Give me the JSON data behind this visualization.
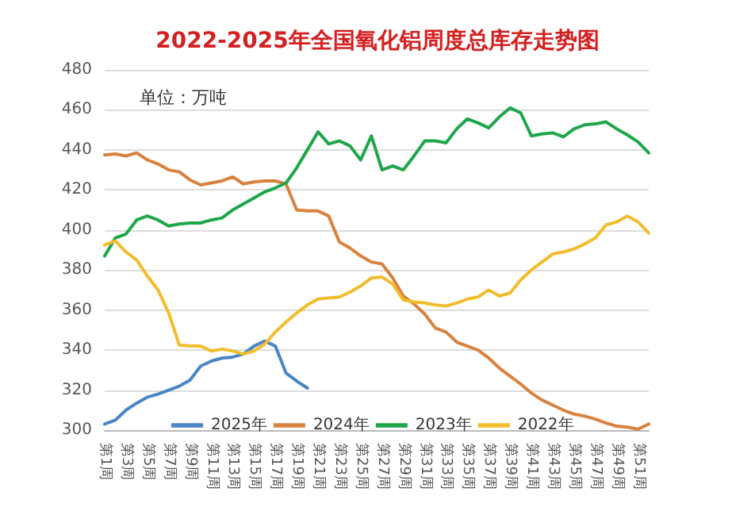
{
  "chart_data": {
    "type": "line",
    "title": "2022-2025年全国氧化铝周度总库存走势图",
    "annotations": [
      "单位：万吨"
    ],
    "categories": [
      "第1周",
      null,
      "第3周",
      null,
      "第5周",
      null,
      "第7周",
      null,
      "第9周",
      null,
      "第11周",
      null,
      "第13周",
      null,
      "第15周",
      null,
      "第17周",
      null,
      "第19周",
      null,
      "第21周",
      null,
      "第23周",
      null,
      "第25周",
      null,
      "第27周",
      null,
      "第29周",
      null,
      "第31周",
      null,
      "第33周",
      null,
      "第35周",
      null,
      "第37周",
      null,
      "第39周",
      null,
      "第41周",
      null,
      "第43周",
      null,
      "第45周",
      null,
      "第47周",
      null,
      "第49周",
      null,
      "第51周",
      null
    ],
    "series": [
      {
        "name": "2025年",
        "color": "#4a86c5",
        "values": [
          303,
          305,
          310,
          313.5,
          316.5,
          318,
          320,
          322,
          325,
          332,
          334.5,
          336,
          336.5,
          338,
          342,
          344.5,
          342,
          328.5,
          324.5,
          321,
          null,
          null,
          null,
          null,
          null,
          null,
          null,
          null,
          null,
          null,
          null,
          null,
          null,
          null,
          null,
          null,
          null,
          null,
          null,
          null,
          null,
          null,
          null,
          null,
          null,
          null,
          null,
          null,
          null,
          null,
          null,
          null
        ]
      },
      {
        "name": "2024年",
        "color": "#d9823f",
        "values": [
          437.5,
          438,
          437,
          438.5,
          435,
          433,
          430,
          429,
          425,
          422.5,
          423.5,
          424.5,
          426.5,
          423,
          424,
          424.5,
          424.5,
          423,
          410,
          409.5,
          409.5,
          407,
          394,
          391,
          387,
          384,
          383,
          376,
          367,
          363,
          358,
          351,
          349,
          344,
          342,
          340,
          336,
          331,
          327,
          323,
          318.5,
          315,
          312.5,
          310,
          308,
          307,
          305.5,
          303.5,
          302,
          301.5,
          300.5,
          303
        ]
      },
      {
        "name": "2023年",
        "color": "#1fa64a",
        "values": [
          387,
          396,
          398,
          405,
          407,
          405,
          402,
          403,
          403.5,
          403.5,
          405,
          406,
          410,
          413,
          416,
          419,
          421,
          423.5,
          431,
          440,
          449,
          443,
          444.5,
          442,
          435,
          447,
          430,
          432,
          430,
          437,
          444.5,
          444.5,
          443.5,
          450.5,
          455.5,
          453.5,
          451,
          456.5,
          461,
          458.5,
          447,
          448,
          448.5,
          446.5,
          450.5,
          452.5,
          453,
          454,
          450.5,
          447.5,
          444,
          438.5
        ]
      },
      {
        "name": "2022年",
        "color": "#f2bd2c",
        "values": [
          392.5,
          394.5,
          389,
          385,
          377,
          370,
          358.5,
          342.5,
          342,
          342,
          339.5,
          340.5,
          339.5,
          338,
          339.5,
          343,
          349,
          354,
          358.5,
          362.5,
          365.5,
          366,
          366.5,
          369,
          372,
          376,
          376.5,
          373,
          365,
          364,
          363.5,
          362.5,
          362,
          363.5,
          365.5,
          366.5,
          370,
          367,
          368.5,
          375,
          380,
          384,
          388,
          389,
          390.5,
          393,
          396,
          402.5,
          404,
          407,
          404,
          398.5
        ]
      }
    ],
    "ylim": [
      300,
      480
    ],
    "yticks": [
      300,
      320,
      340,
      360,
      380,
      400,
      420,
      440,
      460,
      480
    ],
    "grid": "y",
    "legend": "bottom",
    "marker": "none",
    "line_style": "solid"
  }
}
